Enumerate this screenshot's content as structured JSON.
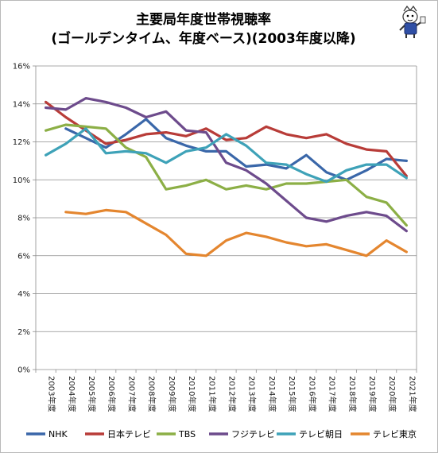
{
  "chart_data": {
    "type": "line",
    "title": "主要局年度世帯視聴率",
    "subtitle": "(ゴールデンタイム、年度ベース)(2003年度以降)",
    "xlabel": "",
    "ylabel": "",
    "ylim": [
      0,
      16
    ],
    "y_ticks": [
      "0%",
      "2%",
      "4%",
      "6%",
      "8%",
      "10%",
      "12%",
      "14%",
      "16%"
    ],
    "grid": true,
    "legend_position": "bottom",
    "categories": [
      "2003年度",
      "2004年度",
      "2005年度",
      "2006年度",
      "2007年度",
      "2008年度",
      "2009年度",
      "2010年度",
      "2011年度",
      "2012年度",
      "2013年度",
      "2014年度",
      "2015年度",
      "2016年度",
      "2017年度",
      "2018年度",
      "2019年度",
      "2020年度",
      "2021年度"
    ],
    "series": [
      {
        "name": "NHK",
        "color": "#3a67a9",
        "values": [
          null,
          12.7,
          12.2,
          11.7,
          12.4,
          13.2,
          12.2,
          11.8,
          11.5,
          11.5,
          10.7,
          10.8,
          10.6,
          11.3,
          10.4,
          10.0,
          10.5,
          11.1,
          11.0
        ]
      },
      {
        "name": "日本テレビ",
        "color": "#b83c38",
        "values": [
          14.1,
          13.3,
          12.6,
          11.9,
          12.1,
          12.4,
          12.5,
          12.3,
          12.7,
          12.1,
          12.2,
          12.8,
          12.4,
          12.2,
          12.4,
          11.9,
          11.6,
          11.5,
          10.2
        ]
      },
      {
        "name": "TBS",
        "color": "#8caf46",
        "values": [
          12.6,
          12.9,
          12.8,
          12.7,
          11.7,
          11.2,
          9.5,
          9.7,
          10.0,
          9.5,
          9.7,
          9.5,
          9.8,
          9.8,
          9.9,
          10.0,
          9.1,
          8.8,
          7.6
        ]
      },
      {
        "name": "フジテレビ",
        "color": "#6d4b8c",
        "values": [
          13.8,
          13.7,
          14.3,
          14.1,
          13.8,
          13.3,
          13.6,
          12.6,
          12.5,
          10.9,
          10.5,
          9.8,
          8.9,
          8.0,
          7.8,
          8.1,
          8.3,
          8.1,
          7.3
        ]
      },
      {
        "name": "テレビ朝日",
        "color": "#3ea2b8",
        "values": [
          11.3,
          11.9,
          12.7,
          11.4,
          11.5,
          11.4,
          10.9,
          11.5,
          11.7,
          12.4,
          11.8,
          10.9,
          10.8,
          10.3,
          9.9,
          10.5,
          10.8,
          10.8,
          10.1
        ]
      },
      {
        "name": "テレビ東京",
        "color": "#e4862f",
        "values": [
          null,
          8.3,
          8.2,
          8.4,
          8.3,
          7.7,
          7.1,
          6.1,
          6.0,
          6.8,
          7.2,
          7.0,
          6.7,
          6.5,
          6.6,
          6.3,
          6.0,
          6.8,
          6.2
        ]
      }
    ]
  }
}
